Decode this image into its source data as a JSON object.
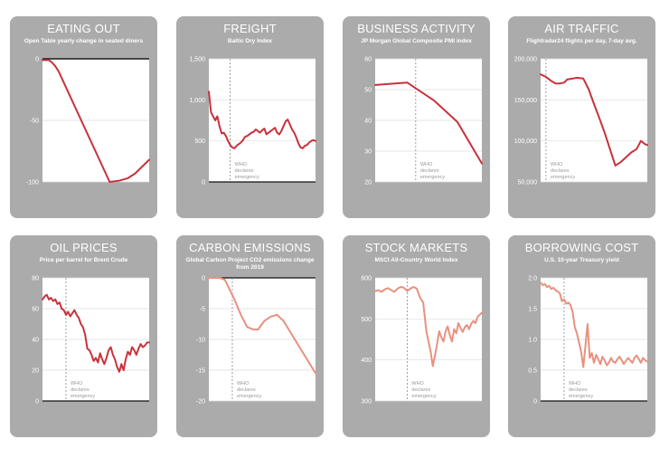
{
  "panel_color": "#ababab",
  "ann_lines": [
    "WHO",
    "declares",
    "emergency"
  ],
  "chart_data": [
    {
      "type": "line",
      "title": "EATING OUT",
      "subtitle": "Open Table yearly change in seated diners",
      "color": "#c8323c",
      "ylim": [
        -100,
        0
      ],
      "yticks": [
        0,
        -50,
        -100
      ],
      "tick_labels": [
        "0",
        "-50",
        "-100"
      ],
      "baseline": 0,
      "top_line": true,
      "who_x": null,
      "x": [
        0,
        0.03,
        0.06,
        0.09,
        0.12,
        0.15,
        0.63,
        0.72,
        0.8,
        0.87,
        1.0
      ],
      "y": [
        -1,
        -1,
        -1,
        -3,
        -6,
        -10,
        -100,
        -99,
        -97,
        -93,
        -82
      ]
    },
    {
      "type": "line",
      "title": "FREIGHT",
      "subtitle": "Baltic Dry Index",
      "color": "#c8323c",
      "ylim": [
        0,
        1500
      ],
      "yticks": [
        1500,
        1000,
        500,
        0
      ],
      "tick_labels": [
        "1,500",
        "1,000",
        "500",
        "0"
      ],
      "baseline": 0,
      "top_line": false,
      "who_x": 0.2,
      "x": [
        0,
        0.02,
        0.04,
        0.06,
        0.08,
        0.1,
        0.12,
        0.14,
        0.16,
        0.18,
        0.2,
        0.22,
        0.24,
        0.26,
        0.28,
        0.3,
        0.32,
        0.34,
        0.36,
        0.38,
        0.4,
        0.42,
        0.44,
        0.46,
        0.48,
        0.5,
        0.52,
        0.54,
        0.56,
        0.58,
        0.6,
        0.62,
        0.64,
        0.66,
        0.68,
        0.7,
        0.72,
        0.74,
        0.76,
        0.78,
        0.8,
        0.82,
        0.84,
        0.86,
        0.88,
        0.9,
        0.92,
        0.94,
        0.96,
        0.98,
        1.0
      ],
      "y": [
        1100,
        850,
        800,
        750,
        800,
        680,
        590,
        600,
        560,
        500,
        450,
        420,
        410,
        440,
        460,
        480,
        510,
        550,
        560,
        580,
        600,
        610,
        640,
        620,
        600,
        630,
        650,
        580,
        600,
        620,
        640,
        660,
        600,
        580,
        620,
        680,
        740,
        760,
        700,
        640,
        600,
        540,
        470,
        420,
        410,
        440,
        450,
        480,
        500,
        510,
        500
      ]
    },
    {
      "type": "line",
      "title": "BUSINESS ACTIVITY",
      "subtitle": "JP Morgan Global Composite PMI index",
      "color": "#c8323c",
      "ylim": [
        20,
        60
      ],
      "yticks": [
        60,
        50,
        40,
        30,
        20
      ],
      "tick_labels": [
        "60",
        "50",
        "40",
        "30",
        "20"
      ],
      "baseline": null,
      "top_line": false,
      "who_x": 0.38,
      "x": [
        0,
        0.3,
        0.55,
        0.77,
        1.0
      ],
      "y": [
        51.5,
        52.3,
        46.5,
        39.5,
        26.0
      ]
    },
    {
      "type": "line",
      "title": "AIR TRAFFIC",
      "subtitle": "Flightradar24 flights per day, 7-day avg.",
      "color": "#c8323c",
      "ylim": [
        50000,
        200000
      ],
      "yticks": [
        200000,
        150000,
        100000,
        50000
      ],
      "tick_labels": [
        "200,000",
        "150,000",
        "100,000",
        "50,000"
      ],
      "baseline": null,
      "top_line": false,
      "who_x": 0.05,
      "x": [
        0,
        0.05,
        0.1,
        0.14,
        0.18,
        0.22,
        0.25,
        0.3,
        0.34,
        0.4,
        0.45,
        0.5,
        0.55,
        0.6,
        0.65,
        0.7,
        0.75,
        0.8,
        0.85,
        0.9,
        0.94,
        0.98,
        1.0
      ],
      "y": [
        181000,
        178000,
        173000,
        170000,
        170000,
        171000,
        175000,
        176000,
        177000,
        176000,
        163000,
        145000,
        128000,
        110000,
        90000,
        70000,
        74000,
        80000,
        86000,
        90000,
        100000,
        96000,
        95000
      ]
    },
    {
      "type": "line",
      "title": "OIL PRICES",
      "subtitle": "Price per barrel for Brent Crude",
      "color": "#c8323c",
      "ylim": [
        0,
        80
      ],
      "yticks": [
        80,
        60,
        40,
        20,
        0
      ],
      "tick_labels": [
        "80",
        "60",
        "40",
        "20",
        "0"
      ],
      "baseline": 0,
      "top_line": false,
      "who_x": 0.22,
      "x": [
        0,
        0.02,
        0.04,
        0.06,
        0.08,
        0.1,
        0.12,
        0.14,
        0.16,
        0.18,
        0.2,
        0.22,
        0.24,
        0.26,
        0.28,
        0.3,
        0.32,
        0.34,
        0.36,
        0.38,
        0.4,
        0.42,
        0.44,
        0.46,
        0.48,
        0.5,
        0.52,
        0.54,
        0.56,
        0.58,
        0.6,
        0.62,
        0.64,
        0.66,
        0.68,
        0.7,
        0.72,
        0.74,
        0.76,
        0.78,
        0.8,
        0.82,
        0.84,
        0.86,
        0.88,
        0.9,
        0.92,
        0.94,
        0.96,
        0.98,
        1.0
      ],
      "y": [
        66,
        68,
        69,
        66,
        67,
        65,
        66,
        63,
        64,
        60,
        59,
        56,
        58,
        55,
        57,
        59,
        56,
        54,
        50,
        48,
        43,
        34,
        33,
        30,
        26,
        28,
        25,
        31,
        27,
        24,
        28,
        33,
        35,
        30,
        27,
        22,
        19,
        24,
        20,
        27,
        32,
        30,
        35,
        33,
        30,
        34,
        37,
        35,
        36,
        38,
        38
      ]
    },
    {
      "type": "line",
      "title": "CARBON EMISSIONS",
      "subtitle": "Global Carbon Project CO2 emissions change from 2019",
      "color": "#e8917e",
      "ylim": [
        -20,
        0
      ],
      "yticks": [
        0,
        -5,
        -10,
        -15,
        -20
      ],
      "tick_labels": [
        "0",
        "-5",
        "-10",
        "-15",
        "-20"
      ],
      "baseline": null,
      "top_line": true,
      "who_x": 0.22,
      "x": [
        0,
        0.1,
        0.15,
        0.24,
        0.3,
        0.36,
        0.42,
        0.46,
        0.52,
        0.58,
        0.64,
        0.7,
        1.0
      ],
      "y": [
        0,
        0,
        -0.3,
        -3.5,
        -6,
        -8,
        -8.4,
        -8.4,
        -7,
        -6.3,
        -6.0,
        -7,
        -15.5
      ]
    },
    {
      "type": "line",
      "title": "STOCK MARKETS",
      "subtitle": "MSCI All-Country World Index",
      "color": "#e8917e",
      "ylim": [
        300,
        600
      ],
      "yticks": [
        600,
        500,
        400,
        300
      ],
      "tick_labels": [
        "600",
        "500",
        "400",
        "300"
      ],
      "baseline": null,
      "top_line": false,
      "who_x": 0.3,
      "x": [
        0,
        0.03,
        0.06,
        0.09,
        0.12,
        0.15,
        0.18,
        0.21,
        0.24,
        0.27,
        0.3,
        0.33,
        0.36,
        0.39,
        0.42,
        0.45,
        0.48,
        0.5,
        0.52,
        0.54,
        0.56,
        0.58,
        0.6,
        0.62,
        0.64,
        0.66,
        0.68,
        0.7,
        0.72,
        0.74,
        0.76,
        0.78,
        0.8,
        0.82,
        0.84,
        0.86,
        0.88,
        0.9,
        0.92,
        0.94,
        0.96,
        0.98,
        1.0
      ],
      "y": [
        568,
        570,
        566,
        572,
        575,
        570,
        566,
        574,
        578,
        576,
        568,
        574,
        578,
        574,
        552,
        540,
        470,
        445,
        420,
        385,
        410,
        438,
        470,
        455,
        445,
        470,
        482,
        460,
        445,
        475,
        465,
        490,
        478,
        468,
        480,
        485,
        475,
        488,
        495,
        490,
        505,
        510,
        515
      ]
    },
    {
      "type": "line",
      "title": "BORROWING COST",
      "subtitle": "U.S. 10-year Treasury yield",
      "color": "#e8917e",
      "ylim": [
        0,
        2.0
      ],
      "yticks": [
        2.0,
        1.5,
        1.0,
        0.5,
        0
      ],
      "tick_labels": [
        "2.0",
        "1.5",
        "1.0",
        "0.5",
        "0"
      ],
      "baseline": 0,
      "top_line": false,
      "who_x": 0.22,
      "x": [
        0,
        0.02,
        0.04,
        0.06,
        0.08,
        0.1,
        0.12,
        0.14,
        0.16,
        0.18,
        0.2,
        0.22,
        0.24,
        0.26,
        0.28,
        0.3,
        0.32,
        0.34,
        0.36,
        0.38,
        0.4,
        0.42,
        0.44,
        0.46,
        0.48,
        0.5,
        0.52,
        0.54,
        0.56,
        0.58,
        0.6,
        0.62,
        0.64,
        0.66,
        0.68,
        0.7,
        0.72,
        0.74,
        0.76,
        0.78,
        0.8,
        0.82,
        0.84,
        0.86,
        0.88,
        0.9,
        0.92,
        0.94,
        0.96,
        0.98,
        1.0
      ],
      "y": [
        1.92,
        1.88,
        1.9,
        1.85,
        1.87,
        1.82,
        1.84,
        1.8,
        1.78,
        1.75,
        1.62,
        1.65,
        1.58,
        1.6,
        1.56,
        1.45,
        1.2,
        1.1,
        0.95,
        0.8,
        0.55,
        0.9,
        1.25,
        0.7,
        0.78,
        0.62,
        0.75,
        0.68,
        0.6,
        0.72,
        0.66,
        0.58,
        0.62,
        0.7,
        0.64,
        0.62,
        0.68,
        0.72,
        0.66,
        0.6,
        0.65,
        0.7,
        0.66,
        0.62,
        0.7,
        0.74,
        0.68,
        0.62,
        0.7,
        0.66,
        0.64
      ]
    }
  ]
}
